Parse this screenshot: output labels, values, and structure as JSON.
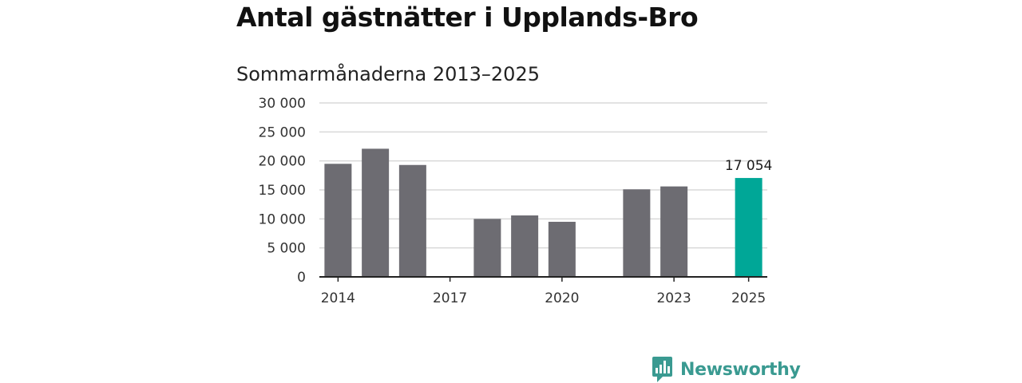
{
  "colors": {
    "bar": "#6d6c72",
    "highlight": "#00a797",
    "grid": "#d9d9d9",
    "axis": "#222222",
    "logo": "#3a9a91"
  },
  "logo": {
    "text": "Newsworthy",
    "icon": "bar-chart-speech-bubble-icon"
  },
  "chart_data": {
    "type": "bar",
    "title": "Antal gästnätter i Upplands-Bro",
    "subtitle": "Sommarmånaderna 2013–2025",
    "xlabel": "",
    "ylabel": "",
    "ylim": [
      0,
      30000
    ],
    "yticks": [
      0,
      5000,
      10000,
      15000,
      20000,
      25000,
      30000
    ],
    "ytick_labels": [
      "0",
      "5 000",
      "10 000",
      "15 000",
      "20 000",
      "25 000",
      "30 000"
    ],
    "xlim": [
      2013.5,
      2025.5
    ],
    "xticks": [
      2014,
      2017,
      2020,
      2023,
      2025
    ],
    "xtick_labels": [
      "2014",
      "2017",
      "2020",
      "2023",
      "2025"
    ],
    "grid": true,
    "legend": "none",
    "bars": [
      {
        "year": 2014,
        "value": 19500
      },
      {
        "year": 2015,
        "value": 22100
      },
      {
        "year": 2016,
        "value": 19300
      },
      {
        "year": 2018,
        "value": 10000
      },
      {
        "year": 2019,
        "value": 10600
      },
      {
        "year": 2020,
        "value": 9500
      },
      {
        "year": 2022,
        "value": 15100
      },
      {
        "year": 2023,
        "value": 15600
      },
      {
        "year": 2025,
        "value": 17054,
        "highlight": true
      }
    ],
    "annotations": [
      {
        "year": 2025,
        "text": "17 054"
      }
    ]
  }
}
